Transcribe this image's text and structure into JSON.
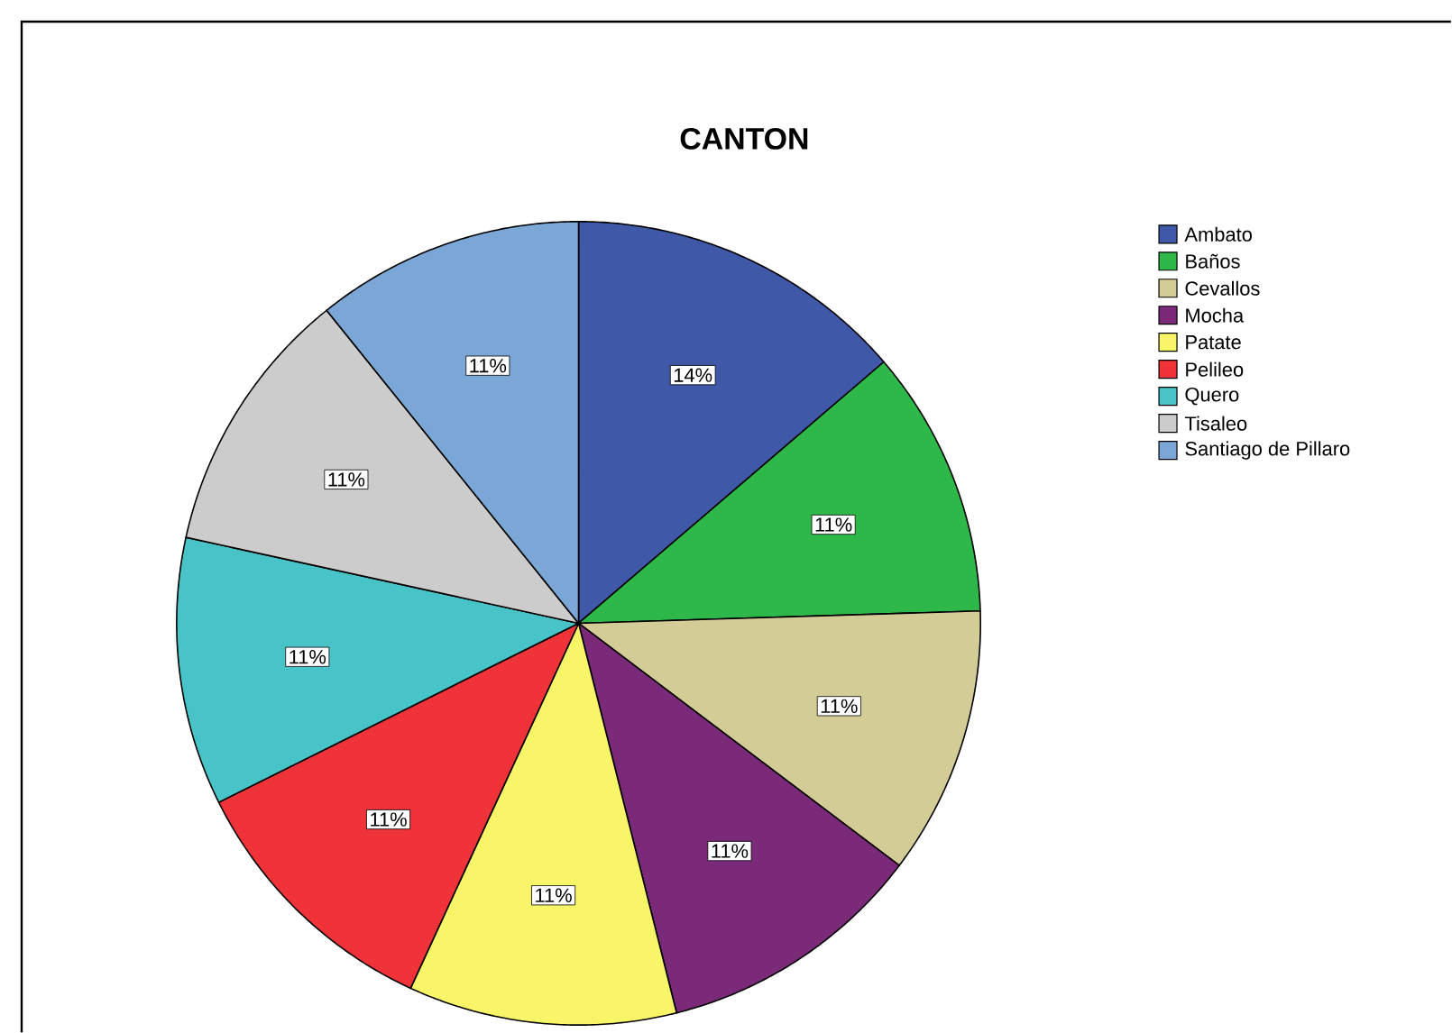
{
  "chart_data": {
    "type": "pie",
    "title": "CANTON",
    "categories": [
      "Ambato",
      "Baños",
      "Cevallos",
      "Mocha",
      "Patate",
      "Pelileo",
      "Quero",
      "Tisaleo",
      "Santiago de Pillaro"
    ],
    "values": [
      14,
      11,
      11,
      11,
      11,
      11,
      11,
      11,
      11
    ],
    "value_labels": [
      "14%",
      "11%",
      "11%",
      "11%",
      "11%",
      "11%",
      "11%",
      "11%",
      "11%"
    ],
    "colors": [
      "#3f58a8",
      "#2fb84a",
      "#d4cc96",
      "#7b2a7a",
      "#f8f568",
      "#ef3338",
      "#48c3c8",
      "#cccccc",
      "#7aa7d6"
    ],
    "legend": "right"
  }
}
